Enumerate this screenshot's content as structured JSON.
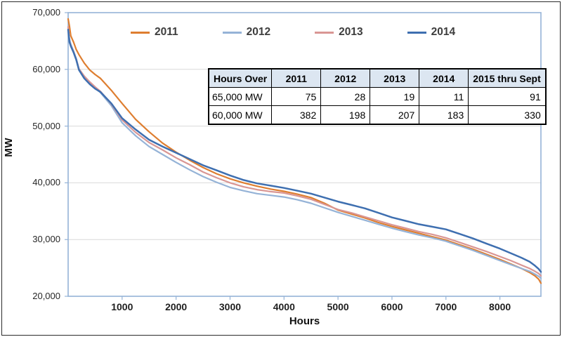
{
  "style": {
    "axis_color": "#95b3d7",
    "gridline_color": "#d9d9d9",
    "table_header_bg": "#dce6f1",
    "text_color": "#262626"
  },
  "table": {
    "headers": [
      "Hours Over",
      "2011",
      "2012",
      "2013",
      "2014",
      "2015 thru Sept"
    ],
    "rows": [
      [
        "65,000 MW",
        "75",
        "28",
        "19",
        "11",
        "91"
      ],
      [
        "60,000 MW",
        "382",
        "198",
        "207",
        "183",
        "330"
      ]
    ]
  },
  "chart_data": {
    "type": "line",
    "title": "",
    "xlabel": "Hours",
    "ylabel": "MW",
    "xlim": [
      0,
      8760
    ],
    "ylim": [
      20000,
      70000
    ],
    "grid": "horizontal gridlines every 10,000 MW",
    "legend_position": "top-inside",
    "x_ticks": [
      {
        "value": 1000,
        "label": "1000"
      },
      {
        "value": 2000,
        "label": "2000"
      },
      {
        "value": 3000,
        "label": "3000"
      },
      {
        "value": 4000,
        "label": "4000"
      },
      {
        "value": 5000,
        "label": "5000"
      },
      {
        "value": 6000,
        "label": "6000"
      },
      {
        "value": 7000,
        "label": "7000"
      },
      {
        "value": 8000,
        "label": "8000"
      }
    ],
    "y_ticks": [
      {
        "value": 20000,
        "label": "20,000"
      },
      {
        "value": 30000,
        "label": "30,000"
      },
      {
        "value": 40000,
        "label": "40,000"
      },
      {
        "value": 50000,
        "label": "50,000"
      },
      {
        "value": 60000,
        "label": "60,000"
      },
      {
        "value": 70000,
        "label": "70,000"
      }
    ],
    "x": [
      0,
      25,
      50,
      100,
      150,
      200,
      300,
      400,
      500,
      600,
      800,
      1000,
      1250,
      1500,
      1750,
      2000,
      2250,
      2500,
      2750,
      3000,
      3250,
      3500,
      3750,
      4000,
      4250,
      4500,
      4750,
      5000,
      5250,
      5500,
      5750,
      6000,
      6250,
      6500,
      6750,
      7000,
      7250,
      7500,
      7750,
      8000,
      8200,
      8400,
      8550,
      8650,
      8720,
      8760
    ],
    "series": [
      {
        "name": "2011",
        "color": "#de7e30",
        "width": 2.2,
        "values": [
          68900,
          67600,
          65900,
          64800,
          63500,
          62600,
          61100,
          59900,
          59100,
          58400,
          56300,
          54000,
          51200,
          49000,
          47000,
          45400,
          44000,
          42700,
          41600,
          40700,
          40000,
          39400,
          38900,
          38500,
          38000,
          37400,
          36400,
          35200,
          34500,
          33800,
          33000,
          32300,
          31700,
          31100,
          30500,
          29900,
          29100,
          28300,
          27400,
          26500,
          25700,
          24900,
          24200,
          23600,
          23000,
          22300
        ]
      },
      {
        "name": "2012",
        "color": "#95b3d7",
        "width": 2.2,
        "values": [
          67300,
          65300,
          64400,
          63200,
          61900,
          60000,
          58600,
          57600,
          56700,
          55900,
          53600,
          50600,
          48300,
          46400,
          45000,
          43600,
          42300,
          41100,
          40100,
          39200,
          38600,
          38100,
          37800,
          37500,
          37000,
          36400,
          35600,
          34800,
          34100,
          33400,
          32700,
          32000,
          31400,
          30800,
          30300,
          29700,
          28900,
          28100,
          27200,
          26300,
          25600,
          24900,
          24400,
          23900,
          23500,
          23200
        ]
      },
      {
        "name": "2013",
        "color": "#d99694",
        "width": 2.2,
        "values": [
          67500,
          64900,
          64200,
          63100,
          61800,
          60100,
          58800,
          57800,
          56900,
          56100,
          53900,
          51100,
          48900,
          47100,
          45800,
          44400,
          43200,
          41900,
          40900,
          40000,
          39300,
          38800,
          38450,
          38200,
          37700,
          37100,
          36200,
          35300,
          34700,
          34000,
          33300,
          32600,
          32000,
          31400,
          30900,
          30300,
          29500,
          28700,
          27900,
          27000,
          26300,
          25500,
          24900,
          24400,
          24000,
          23600
        ]
      },
      {
        "name": "2014",
        "color": "#3e6fb0",
        "width": 2.5,
        "values": [
          67000,
          64800,
          64100,
          63000,
          61700,
          59900,
          58400,
          57400,
          56600,
          56000,
          54000,
          51400,
          49400,
          47600,
          46400,
          45300,
          44200,
          43100,
          42200,
          41300,
          40500,
          39900,
          39500,
          39100,
          38600,
          38100,
          37400,
          36700,
          36100,
          35500,
          34700,
          33900,
          33300,
          32700,
          32250,
          31800,
          31000,
          30200,
          29300,
          28400,
          27600,
          26800,
          26100,
          25400,
          24800,
          24300
        ]
      }
    ]
  }
}
